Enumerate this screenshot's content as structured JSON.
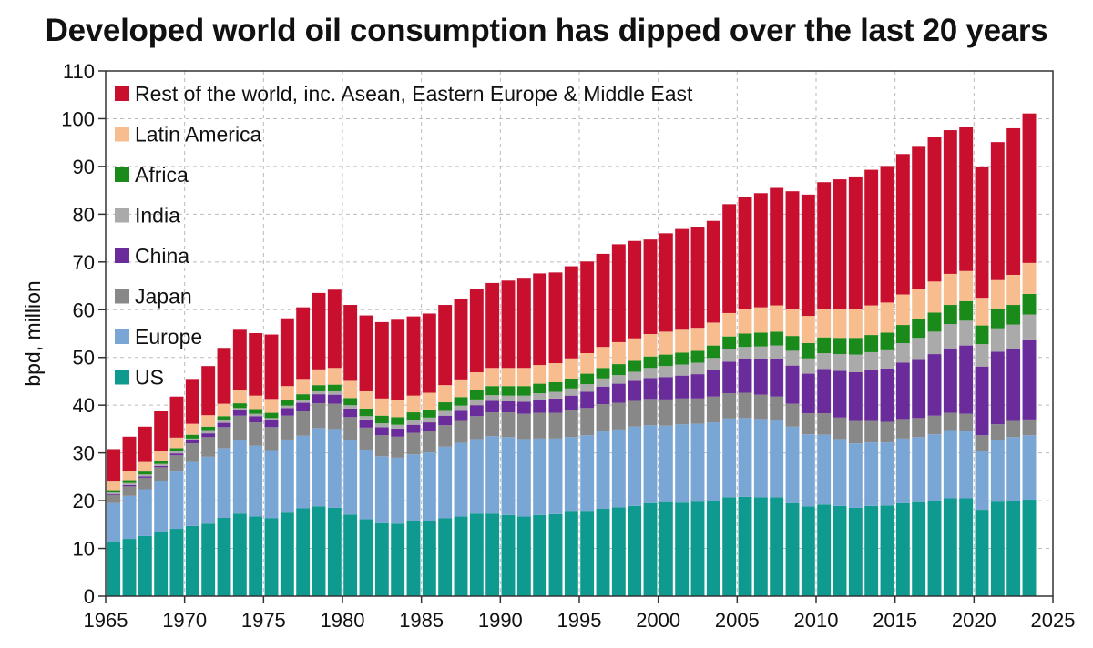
{
  "chart_data": {
    "type": "bar",
    "stacked": true,
    "title": "Developed world oil consumption has dipped over the last 20 years",
    "xlabel": "",
    "ylabel": "bpd, million",
    "ylim": [
      0,
      110
    ],
    "yticks": [
      0,
      10,
      20,
      30,
      40,
      50,
      60,
      70,
      80,
      90,
      100,
      110
    ],
    "xticks": [
      1965,
      1970,
      1975,
      1980,
      1985,
      1990,
      1995,
      2000,
      2005,
      2010,
      2015,
      2020,
      2025
    ],
    "xlim": [
      1965,
      2025
    ],
    "grid": true,
    "legend_position": "top-left",
    "x": [
      1965,
      1966,
      1967,
      1968,
      1969,
      1970,
      1971,
      1972,
      1973,
      1974,
      1975,
      1976,
      1977,
      1978,
      1979,
      1980,
      1981,
      1982,
      1983,
      1984,
      1985,
      1986,
      1987,
      1988,
      1989,
      1990,
      1991,
      1992,
      1993,
      1994,
      1995,
      1996,
      1997,
      1998,
      1999,
      2000,
      2001,
      2002,
      2003,
      2004,
      2005,
      2006,
      2007,
      2008,
      2009,
      2010,
      2011,
      2012,
      2013,
      2014,
      2015,
      2016,
      2017,
      2018,
      2019,
      2020,
      2021,
      2022,
      2023
    ],
    "series": [
      {
        "name": "US",
        "color": "#0f9a8f",
        "values": [
          11.5,
          12.0,
          12.6,
          13.4,
          14.1,
          14.7,
          15.2,
          16.4,
          17.3,
          16.7,
          16.3,
          17.5,
          18.4,
          18.8,
          18.5,
          17.1,
          16.1,
          15.3,
          15.2,
          15.7,
          15.7,
          16.3,
          16.7,
          17.3,
          17.3,
          17.0,
          16.7,
          17.0,
          17.2,
          17.7,
          17.7,
          18.3,
          18.6,
          18.9,
          19.5,
          19.7,
          19.6,
          19.8,
          20.0,
          20.7,
          20.8,
          20.7,
          20.7,
          19.5,
          18.8,
          19.2,
          18.9,
          18.5,
          18.9,
          19.0,
          19.5,
          19.7,
          19.9,
          20.5,
          20.5,
          18.1,
          19.8,
          20.0,
          20.2
        ]
      },
      {
        "name": "Europe",
        "color": "#7aa6d6",
        "values": [
          8.0,
          9.0,
          9.8,
          10.8,
          12.0,
          13.4,
          14.0,
          14.6,
          15.4,
          14.8,
          14.3,
          15.3,
          15.2,
          16.4,
          16.5,
          15.5,
          14.6,
          14.0,
          13.8,
          14.0,
          14.4,
          15.0,
          15.4,
          15.6,
          16.2,
          16.3,
          16.2,
          16.0,
          15.8,
          15.6,
          16.0,
          16.2,
          16.3,
          16.6,
          16.3,
          16.0,
          16.4,
          16.3,
          16.4,
          16.5,
          16.5,
          16.4,
          16.1,
          16.0,
          15.1,
          14.6,
          14.0,
          13.5,
          13.3,
          13.2,
          13.5,
          13.6,
          14.0,
          14.1,
          14.0,
          12.3,
          12.8,
          13.3,
          13.5
        ]
      },
      {
        "name": "Japan",
        "color": "#888888",
        "values": [
          1.7,
          2.0,
          2.4,
          2.8,
          3.4,
          3.9,
          4.1,
          4.4,
          5.1,
          4.9,
          4.8,
          5.0,
          5.1,
          5.2,
          5.3,
          4.9,
          4.6,
          4.4,
          4.4,
          4.5,
          4.4,
          4.5,
          4.6,
          4.8,
          5.0,
          5.2,
          5.3,
          5.4,
          5.4,
          5.6,
          5.7,
          5.7,
          5.6,
          5.4,
          5.5,
          5.5,
          5.4,
          5.3,
          5.4,
          5.3,
          5.3,
          5.1,
          5.0,
          4.8,
          4.4,
          4.5,
          4.5,
          4.7,
          4.5,
          4.3,
          4.1,
          4.0,
          3.9,
          3.8,
          3.7,
          3.3,
          3.4,
          3.4,
          3.3
        ]
      },
      {
        "name": "China",
        "color": "#6a2c9a",
        "values": [
          0.2,
          0.3,
          0.3,
          0.3,
          0.4,
          0.6,
          0.8,
          0.9,
          1.1,
          1.3,
          1.4,
          1.6,
          1.8,
          1.9,
          1.9,
          1.8,
          1.7,
          1.7,
          1.7,
          1.7,
          1.9,
          2.0,
          2.1,
          2.3,
          2.4,
          2.3,
          2.5,
          2.7,
          3.0,
          3.1,
          3.4,
          3.7,
          4.0,
          4.2,
          4.4,
          4.7,
          4.8,
          5.1,
          5.6,
          6.6,
          7.0,
          7.4,
          7.8,
          8.0,
          8.3,
          9.3,
          9.8,
          10.2,
          10.7,
          11.2,
          11.8,
          12.2,
          12.9,
          13.5,
          14.3,
          14.4,
          15.2,
          15.0,
          16.6
        ]
      },
      {
        "name": "India",
        "color": "#aaaaaa",
        "values": [
          0.3,
          0.4,
          0.4,
          0.4,
          0.4,
          0.4,
          0.5,
          0.5,
          0.5,
          0.5,
          0.5,
          0.5,
          0.6,
          0.6,
          0.7,
          0.7,
          0.7,
          0.8,
          0.8,
          0.9,
          1.0,
          1.0,
          1.1,
          1.2,
          1.2,
          1.2,
          1.3,
          1.4,
          1.4,
          1.5,
          1.6,
          1.7,
          1.8,
          1.9,
          2.1,
          2.3,
          2.3,
          2.4,
          2.5,
          2.6,
          2.6,
          2.7,
          2.9,
          3.1,
          3.2,
          3.3,
          3.5,
          3.7,
          3.7,
          3.8,
          4.1,
          4.6,
          4.7,
          5.1,
          5.2,
          4.7,
          4.9,
          5.2,
          5.4
        ]
      },
      {
        "name": "Africa",
        "color": "#1a8a1a",
        "values": [
          0.5,
          0.6,
          0.6,
          0.7,
          0.7,
          0.8,
          0.9,
          0.9,
          1.0,
          1.0,
          1.1,
          1.1,
          1.2,
          1.3,
          1.4,
          1.5,
          1.6,
          1.6,
          1.6,
          1.7,
          1.7,
          1.8,
          1.8,
          1.9,
          1.9,
          2.0,
          2.0,
          2.0,
          2.0,
          2.1,
          2.2,
          2.2,
          2.3,
          2.3,
          2.4,
          2.4,
          2.5,
          2.5,
          2.6,
          2.7,
          2.8,
          2.9,
          2.9,
          3.1,
          3.2,
          3.3,
          3.4,
          3.5,
          3.6,
          3.7,
          3.8,
          3.9,
          4.0,
          4.0,
          4.1,
          3.9,
          4.0,
          4.1,
          4.3
        ]
      },
      {
        "name": "Latin America",
        "color": "#f7bd8f",
        "values": [
          1.8,
          1.9,
          2.0,
          2.1,
          2.2,
          2.3,
          2.4,
          2.6,
          2.8,
          2.8,
          2.9,
          3.0,
          3.2,
          3.3,
          3.5,
          3.6,
          3.6,
          3.6,
          3.5,
          3.5,
          3.5,
          3.6,
          3.7,
          3.8,
          3.8,
          3.8,
          3.8,
          3.9,
          4.0,
          4.2,
          4.3,
          4.4,
          4.6,
          4.7,
          4.7,
          4.8,
          4.8,
          4.8,
          4.8,
          4.9,
          5.1,
          5.3,
          5.5,
          5.6,
          5.7,
          5.9,
          6.0,
          6.1,
          6.2,
          6.3,
          6.4,
          6.4,
          6.5,
          6.5,
          6.3,
          5.8,
          6.1,
          6.3,
          6.5
        ]
      },
      {
        "name": "Rest of the world, inc. Asean, Eastern Europe & Middle East",
        "color": "#c8102e",
        "values": [
          6.8,
          7.2,
          7.4,
          8.2,
          8.6,
          9.4,
          10.3,
          11.7,
          12.6,
          13.1,
          13.5,
          14.2,
          15.0,
          16.0,
          16.4,
          15.9,
          15.9,
          16.0,
          16.9,
          16.6,
          16.6,
          16.8,
          16.9,
          17.5,
          17.8,
          18.3,
          18.7,
          19.2,
          19.0,
          19.3,
          19.2,
          19.5,
          20.5,
          20.4,
          19.8,
          20.6,
          21.1,
          21.2,
          21.3,
          22.8,
          23.4,
          23.9,
          24.6,
          24.7,
          25.4,
          26.6,
          27.2,
          27.7,
          28.4,
          28.6,
          29.4,
          29.9,
          30.2,
          30.1,
          30.2,
          27.5,
          28.9,
          30.7,
          31.3
        ]
      }
    ]
  }
}
